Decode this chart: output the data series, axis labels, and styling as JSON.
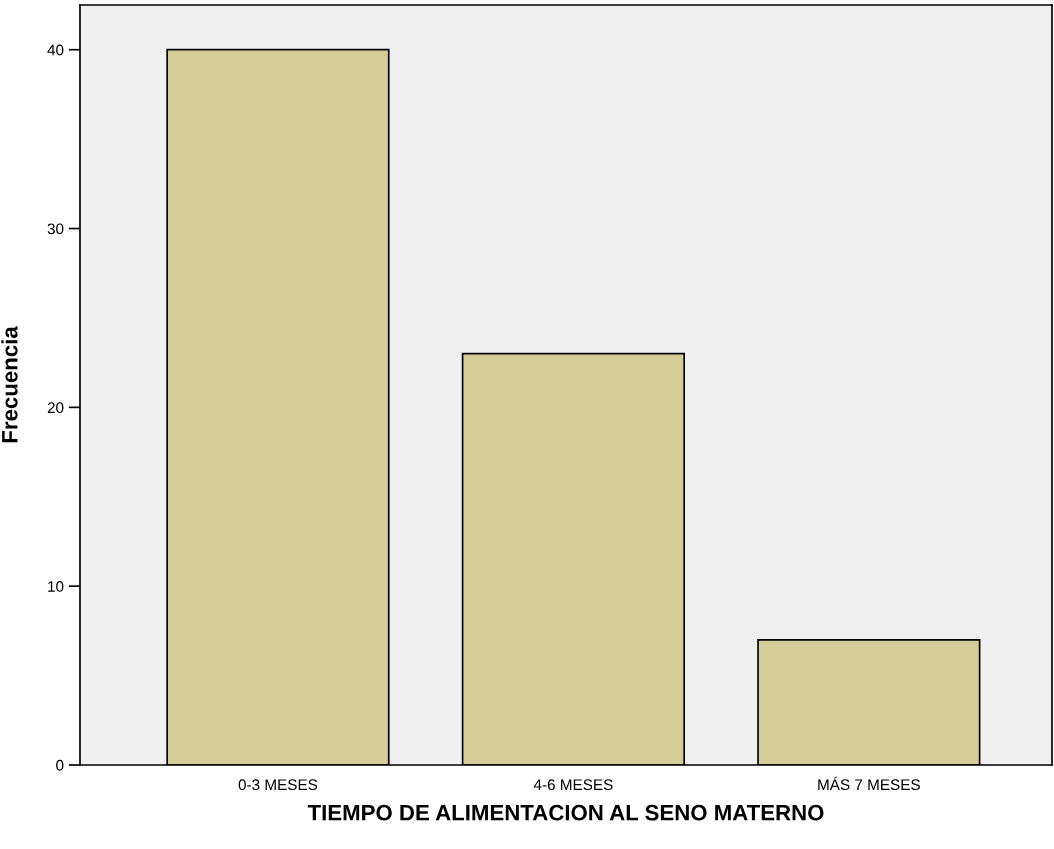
{
  "chart_data": {
    "type": "bar",
    "xlabel": "TIEMPO DE ALIMENTACION AL SENO MATERNO",
    "ylabel": "Frecuencia",
    "categories": [
      "0-3 MESES",
      "4-6 MESES",
      "MÁS 7 MESES"
    ],
    "values": [
      40,
      23,
      7
    ],
    "color": "#d3ce97",
    "ylim": [
      0,
      42.5
    ],
    "yticks": [
      0,
      10,
      20,
      30,
      40
    ],
    "grid": false
  }
}
